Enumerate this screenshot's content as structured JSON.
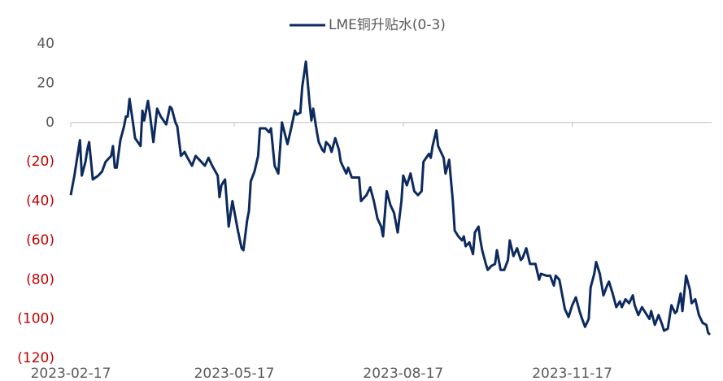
{
  "chart_data": {
    "type": "line",
    "series": [
      {
        "name": "LME铜升贴水(0-3)",
        "color": "#0d2a5e",
        "values": [
          -37,
          -27,
          -15,
          -9,
          -27,
          -20,
          -14,
          -10,
          -29,
          -27,
          -25,
          -20,
          -17,
          -12,
          -23,
          -23,
          -9,
          -2,
          3,
          3,
          12,
          -1,
          -8,
          -12,
          6,
          1,
          11,
          5,
          -10,
          7,
          3,
          -1,
          8,
          7,
          0,
          -2,
          -17,
          -15,
          -17,
          -22,
          -17,
          -18,
          -20,
          -22,
          -18,
          -22,
          -27,
          -38,
          -32,
          -29,
          -53,
          -40,
          -55,
          -64,
          -65,
          -50,
          -45,
          -30,
          -25,
          -17,
          -3,
          -3,
          -5,
          -3,
          -22,
          -26,
          0,
          -11,
          -3,
          6,
          4,
          5,
          18,
          31,
          10,
          1,
          7,
          -5,
          -10,
          -14,
          -15,
          -10,
          -12,
          -15,
          -8,
          -14,
          -20,
          -26,
          -23,
          -28,
          -28,
          -40,
          -37,
          -33,
          -40,
          -49,
          -53,
          -58,
          -35,
          -42,
          -46,
          -56,
          -40,
          -27,
          -32,
          -26,
          -35,
          -37,
          -35,
          -20,
          -16,
          -18,
          -12,
          -4,
          -12,
          -18,
          -26,
          -19,
          -40,
          -55,
          -58,
          -60,
          -58,
          -63,
          -61,
          -67,
          -56,
          -53,
          -60,
          -65,
          -72,
          -75,
          -73,
          -72,
          -65,
          -75,
          -75,
          -70,
          -60,
          -68,
          -64,
          -70,
          -69,
          -64,
          -72,
          -72,
          -80,
          -77,
          -78,
          -78,
          -83,
          -78,
          -80,
          -90,
          -95,
          -99,
          -93,
          -89,
          -96,
          -99,
          -104,
          -100,
          -84,
          -77,
          -71,
          -77,
          -88,
          -83,
          -81,
          -87,
          -94,
          -91,
          -94,
          -90,
          -92,
          -88,
          -93,
          -98,
          -94,
          -97,
          -100,
          -96,
          -103,
          -98,
          -103,
          -106,
          -105,
          -93,
          -97,
          -96,
          -87,
          -96,
          -78,
          -85,
          -92,
          -90,
          -98,
          -102,
          -103,
          -107,
          -108
        ]
      }
    ],
    "x": [
      "2023-02-17",
      "2023-02-19",
      "2023-02-21",
      "2023-02-22",
      "2023-02-23",
      "2023-02-25",
      "2023-02-26",
      "2023-02-27",
      "2023-03-01",
      "2023-03-04",
      "2023-03-06",
      "2023-03-08",
      "2023-03-11",
      "2023-03-12",
      "2023-03-13",
      "2023-03-14",
      "2023-03-16",
      "2023-03-18",
      "2023-03-19",
      "2023-03-20",
      "2023-03-21",
      "2023-03-23",
      "2023-03-24",
      "2023-03-27",
      "2023-03-28",
      "2023-03-29",
      "2023-03-31",
      "2023-04-01",
      "2023-04-03",
      "2023-04-05",
      "2023-04-07",
      "2023-04-10",
      "2023-04-12",
      "2023-04-13",
      "2023-04-15",
      "2023-04-16",
      "2023-04-18",
      "2023-04-20",
      "2023-04-21",
      "2023-04-24",
      "2023-04-26",
      "2023-04-27",
      "2023-04-29",
      "2023-05-01",
      "2023-05-03",
      "2023-05-05",
      "2023-05-08",
      "2023-05-09",
      "2023-05-10",
      "2023-05-12",
      "2023-05-14",
      "2023-05-16",
      "2023-05-19",
      "2023-05-21",
      "2023-05-22",
      "2023-05-24",
      "2023-05-25",
      "2023-05-26",
      "2023-05-28",
      "2023-05-30",
      "2023-05-31",
      "2023-06-03",
      "2023-06-05",
      "2023-06-06",
      "2023-06-08",
      "2023-06-10",
      "2023-06-12",
      "2023-06-15",
      "2023-06-17",
      "2023-06-19",
      "2023-06-20",
      "2023-06-22",
      "2023-06-23",
      "2023-06-25",
      "2023-06-27",
      "2023-06-28",
      "2023-06-29",
      "2023-07-01",
      "2023-07-02",
      "2023-07-04",
      "2023-07-05",
      "2023-07-06",
      "2023-07-08",
      "2023-07-09",
      "2023-07-11",
      "2023-07-13",
      "2023-07-14",
      "2023-07-17",
      "2023-07-18",
      "2023-07-20",
      "2023-07-24",
      "2023-07-25",
      "2023-07-28",
      "2023-07-30",
      "2023-08-01",
      "2023-08-03",
      "2023-08-05",
      "2023-08-06",
      "2023-08-08",
      "2023-08-10",
      "2023-08-12",
      "2023-08-14",
      "2023-08-16",
      "2023-08-17",
      "2023-08-19",
      "2023-08-21",
      "2023-08-23",
      "2023-08-25",
      "2023-08-27",
      "2023-08-28",
      "2023-08-31",
      "2023-09-01",
      "2023-09-02",
      "2023-09-04",
      "2023-09-05",
      "2023-09-08",
      "2023-09-09",
      "2023-09-11",
      "2023-09-13",
      "2023-09-14",
      "2023-09-16",
      "2023-09-18",
      "2023-09-19",
      "2023-09-20",
      "2023-09-22",
      "2023-09-24",
      "2023-09-25",
      "2023-09-27",
      "2023-09-28",
      "2023-09-29",
      "2023-10-01",
      "2023-10-02",
      "2023-10-04",
      "2023-10-06",
      "2023-10-07",
      "2023-10-09",
      "2023-10-11",
      "2023-10-13",
      "2023-10-14",
      "2023-10-16",
      "2023-10-18",
      "2023-10-20",
      "2023-10-21",
      "2023-10-23",
      "2023-10-25",
      "2023-10-28",
      "2023-10-30",
      "2023-10-31",
      "2023-11-03",
      "2023-11-05",
      "2023-11-07",
      "2023-11-08",
      "2023-11-10",
      "2023-11-12",
      "2023-11-13",
      "2023-11-15",
      "2023-11-17",
      "2023-11-19",
      "2023-11-21",
      "2023-11-22",
      "2023-11-24",
      "2023-11-26",
      "2023-11-27",
      "2023-11-29",
      "2023-11-30",
      "2023-12-02",
      "2023-12-04",
      "2023-12-06",
      "2023-12-07",
      "2023-12-09",
      "2023-12-11",
      "2023-12-13",
      "2023-12-14",
      "2023-12-16",
      "2023-12-18",
      "2023-12-20",
      "2023-12-21",
      "2023-12-23",
      "2023-12-25",
      "2023-12-27",
      "2023-12-29",
      "2023-12-30",
      "2024-01-01",
      "2024-01-03",
      "2024-01-05",
      "2024-01-06",
      "2024-01-08",
      "2024-01-10",
      "2024-01-12",
      "2024-01-13",
      "2024-01-15",
      "2024-01-16",
      "2024-01-18",
      "2024-01-20",
      "2024-01-21",
      "2024-01-23",
      "2024-01-25",
      "2024-01-27",
      "2024-01-29",
      "2024-01-30",
      "2024-01-31"
    ],
    "xlim": [
      "2023-02-17",
      "2024-01-31"
    ],
    "xticks": [
      "2023-02-17",
      "2023-05-17",
      "2023-08-17",
      "2023-11-17"
    ],
    "ylim": [
      -120,
      40
    ],
    "yticks": [
      40,
      20,
      0,
      {
        "value": -20,
        "label": "(20)"
      },
      {
        "value": -40,
        "label": "(40)"
      },
      {
        "value": -60,
        "label": "(60)"
      },
      {
        "value": -80,
        "label": "(80)"
      },
      {
        "value": -100,
        "label": "(100)"
      },
      {
        "value": -120,
        "label": "(120)"
      }
    ],
    "tick_color": "#595959",
    "negative_tick_color": "#c00000",
    "grid": false,
    "legend": "top"
  }
}
